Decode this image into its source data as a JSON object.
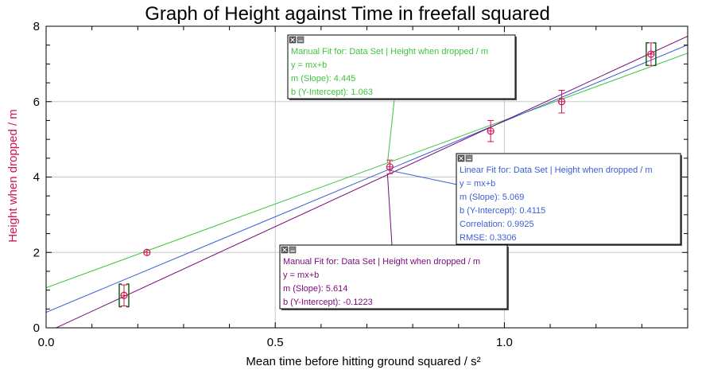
{
  "chart_data": {
    "type": "scatter",
    "title": "Graph of Height against Time in freefall squared",
    "xlabel": "Mean time before hitting ground squared / s²",
    "ylabel": "Height when dropped / m",
    "xlim": [
      0,
      1.4
    ],
    "ylim": [
      0,
      8
    ],
    "x_ticks": [
      0.0,
      0.5,
      1.0
    ],
    "x_tick_labels": [
      "0.0",
      "0.5",
      "1.0"
    ],
    "y_ticks": [
      0,
      2,
      4,
      6,
      8
    ],
    "y_tick_labels": [
      "0",
      "2",
      "4",
      "6",
      "8"
    ],
    "grid": true,
    "series": [
      {
        "points": [
          {
            "x": 0.17,
            "y": 0.86,
            "xerr": 0,
            "yerr": 0.28
          },
          {
            "x": 0.22,
            "y": 2.0,
            "xerr": 0,
            "yerr": 0
          },
          {
            "x": 0.75,
            "y": 4.27,
            "xerr": 0,
            "yerr": 0.18
          },
          {
            "x": 0.97,
            "y": 5.22,
            "xerr": 0,
            "yerr": 0.28
          },
          {
            "x": 1.125,
            "y": 6.0,
            "xerr": 0,
            "yerr": 0.3
          },
          {
            "x": 1.32,
            "y": 7.26,
            "xerr": 0,
            "yerr": 0.3
          }
        ],
        "color": "#d4154f"
      }
    ],
    "fits": [
      {
        "color": "#3ec43e",
        "m": 4.445,
        "b": 1.063,
        "lines": [
          "Manual Fit for: Data Set | Height when dropped / m",
          "y = mx+b",
          "m (Slope): 4.445",
          "b (Y-Intercept): 1.063"
        ]
      },
      {
        "color": "#3a5fd4",
        "m": 5.069,
        "b": 0.4115,
        "lines": [
          "Linear Fit for: Data Set | Height when dropped / m",
          "y = mx+b",
          "m (Slope): 5.069",
          "b (Y-Intercept): 0.4115",
          "Correlation: 0.9925",
          "RMSE: 0.3306"
        ]
      },
      {
        "color": "#7a0a7a",
        "m": 5.614,
        "b": -0.1223,
        "lines": [
          "Manual Fit for: Data Set | Height when dropped / m",
          "y = mx+b",
          "m (Slope): 5.614",
          "b (Y-Intercept): -0.1223"
        ]
      }
    ]
  }
}
